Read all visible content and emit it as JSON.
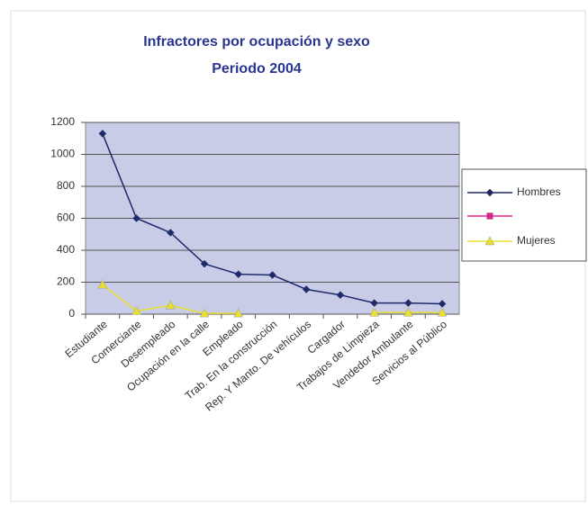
{
  "chart_data": {
    "type": "line",
    "title": "Infractores por ocupación y sexo",
    "subtitle": "Periodo 2004",
    "categories": [
      "Estudiante",
      "Comerciante",
      "Desempleado",
      "Ocupación en la calle",
      "Empleado",
      "Trab. En la construcción",
      "Rep. Y Manto. De vehículos",
      "Cargador",
      "Trabajos de Limpieza",
      "Vendedor Ambulante",
      "Servicios al Público"
    ],
    "series": [
      {
        "name": "Hombres",
        "color": "#1f2a6b",
        "marker": "diamond",
        "values": [
          1130,
          600,
          510,
          315,
          250,
          245,
          155,
          120,
          70,
          70,
          65
        ]
      },
      {
        "color": "#e0208a",
        "marker": "square",
        "values": [
          null,
          null,
          null,
          null,
          null,
          null,
          null,
          null,
          null,
          null,
          null
        ]
      },
      {
        "name": "Mujeres",
        "color": "#e8e030",
        "marker": "triangle",
        "values": [
          185,
          20,
          55,
          5,
          5,
          null,
          null,
          null,
          10,
          10,
          10
        ]
      }
    ],
    "ylim": [
      0,
      1200
    ],
    "yticks": [
      0,
      200,
      400,
      600,
      800,
      1000,
      1200
    ],
    "grid": true,
    "legend": "right"
  }
}
